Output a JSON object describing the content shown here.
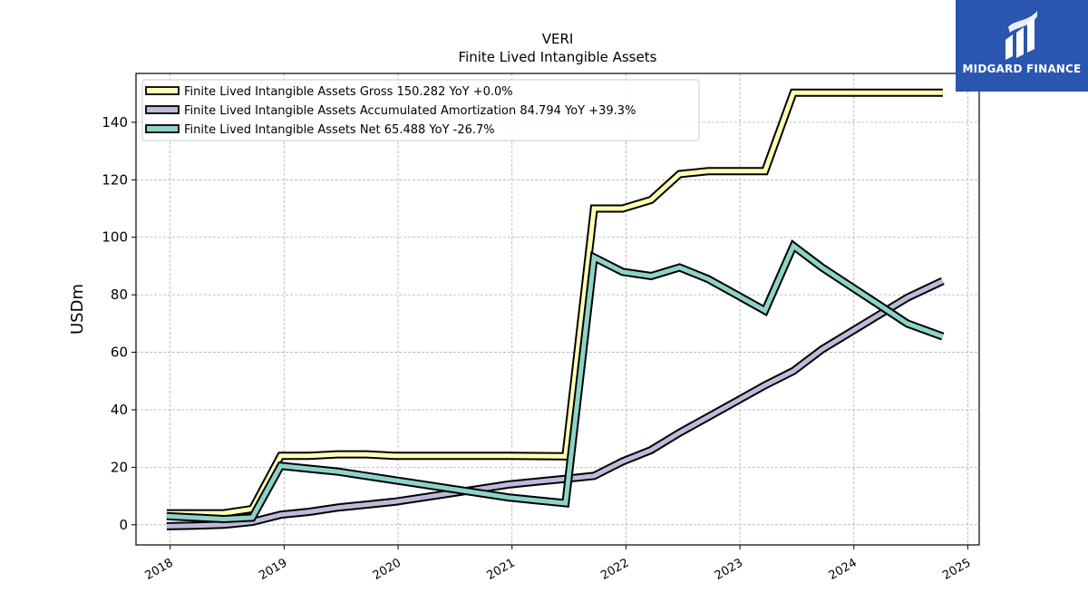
{
  "brand": {
    "name": "MIDGARD FINANCE",
    "color": "#2a56b0"
  },
  "chart_data": {
    "type": "line",
    "title": "VERI",
    "subtitle": "Finite Lived Intangible Assets",
    "ylabel": "USDm",
    "xlabel": "",
    "ylim": [
      -7,
      157
    ],
    "xlim": [
      2017.7,
      2025.1
    ],
    "yticks": [
      0,
      20,
      40,
      60,
      80,
      100,
      120,
      140
    ],
    "xticks": [
      "2018",
      "2019",
      "2020",
      "2021",
      "2022",
      "2023",
      "2024",
      "2025"
    ],
    "grid": true,
    "legend_position": "top-left",
    "x": [
      2017.97,
      2018.22,
      2018.47,
      2018.72,
      2018.97,
      2019.22,
      2019.47,
      2019.72,
      2019.97,
      2020.22,
      2020.47,
      2020.72,
      2020.97,
      2021.22,
      2021.47,
      2021.72,
      2021.97,
      2022.22,
      2022.47,
      2022.72,
      2022.97,
      2023.22,
      2023.47,
      2023.72,
      2023.97,
      2024.22,
      2024.47,
      2024.78
    ],
    "series": [
      {
        "name": "Finite Lived Intangible Assets Gross",
        "legend_value": "150.282 YoY +0.0%",
        "color": "#ffffb3",
        "values": [
          4.0,
          4.0,
          4.0,
          5.5,
          24.0,
          24.0,
          24.5,
          24.5,
          24.0,
          24.0,
          24.0,
          24.0,
          24.0,
          23.9,
          23.8,
          110.0,
          110.0,
          113.0,
          122.0,
          123.0,
          123.0,
          123.0,
          150.3,
          150.3,
          150.3,
          150.3,
          150.3,
          150.3
        ]
      },
      {
        "name": "Finite Lived Intangible Assets Accumulated Amortization",
        "legend_value": "84.794 YoY +39.3%",
        "color": "#bebada",
        "values": [
          -0.5,
          -0.3,
          0.0,
          1.0,
          3.5,
          4.5,
          6.0,
          7.0,
          8.0,
          9.5,
          11.0,
          12.5,
          14.0,
          15.0,
          16.0,
          17.0,
          22.0,
          26.0,
          32.0,
          37.5,
          43.0,
          48.5,
          53.5,
          61.0,
          67.0,
          73.0,
          79.0,
          84.8
        ]
      },
      {
        "name": "Finite Lived Intangible Assets Net",
        "legend_value": "65.488 YoY -26.7%",
        "color": "#8dd3c7",
        "values": [
          3.0,
          2.5,
          2.0,
          2.5,
          20.5,
          19.5,
          18.5,
          17.0,
          15.5,
          14.0,
          12.5,
          11.0,
          9.5,
          8.5,
          7.5,
          93.0,
          88.0,
          86.5,
          89.5,
          85.5,
          80.0,
          74.5,
          97.0,
          89.5,
          83.0,
          76.5,
          70.0,
          65.5
        ]
      }
    ]
  }
}
